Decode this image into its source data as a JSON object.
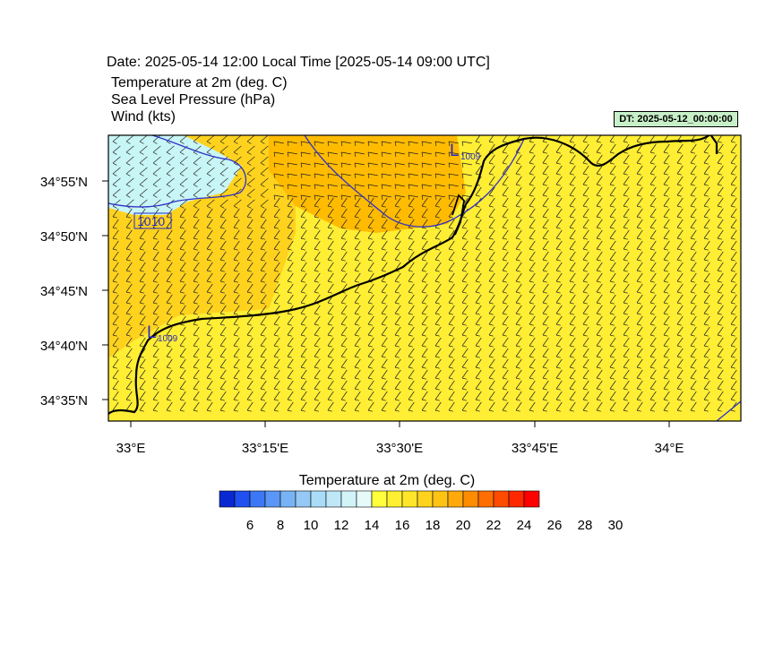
{
  "header": {
    "date_line": "Date: 2025-05-14  12:00 Local Time [2025-05-14  09:00 UTC]",
    "field_1": "Temperature at 2m   (deg. C)",
    "field_2": "Sea Level Pressure   (hPa)",
    "field_3": "Wind   (kts)",
    "dt_badge": "DT: 2025-05-12_00:00:00"
  },
  "map": {
    "lat_labels": [
      "34°55'N",
      "34°50'N",
      "34°45'N",
      "34°40'N",
      "34°35'N"
    ],
    "lon_labels": [
      "33°E",
      "33°15'E",
      "33°30'E",
      "33°45'E",
      "34°E"
    ],
    "isobars": [
      {
        "label": "1010",
        "boxed": true
      },
      {
        "label": "1009",
        "prefix": "L"
      },
      {
        "label": "1009",
        "prefix": "L"
      }
    ],
    "colors": {
      "land_sea": "#ffee33",
      "warm": "#ffd21e",
      "warmer": "#ffbb00",
      "cool": "#c8f5f5",
      "isobar": "#3030c8"
    }
  },
  "colorbar": {
    "title": "Temperature at 2m  (deg. C)",
    "tick_labels": [
      "6",
      "8",
      "10",
      "12",
      "14",
      "16",
      "18",
      "20",
      "22",
      "24",
      "26",
      "28",
      "30"
    ],
    "colors": [
      "#0a28d2",
      "#2050f0",
      "#3c78f5",
      "#5a96f5",
      "#78b4f5",
      "#96c8f5",
      "#aadcf8",
      "#bee8f8",
      "#d2f4f8",
      "#e6fafa",
      "#ffff3c",
      "#fff032",
      "#ffe628",
      "#ffd21e",
      "#ffc314",
      "#ffaa0a",
      "#ff8c00",
      "#ff6e00",
      "#ff4b00",
      "#ff2800",
      "#ff0000"
    ]
  }
}
